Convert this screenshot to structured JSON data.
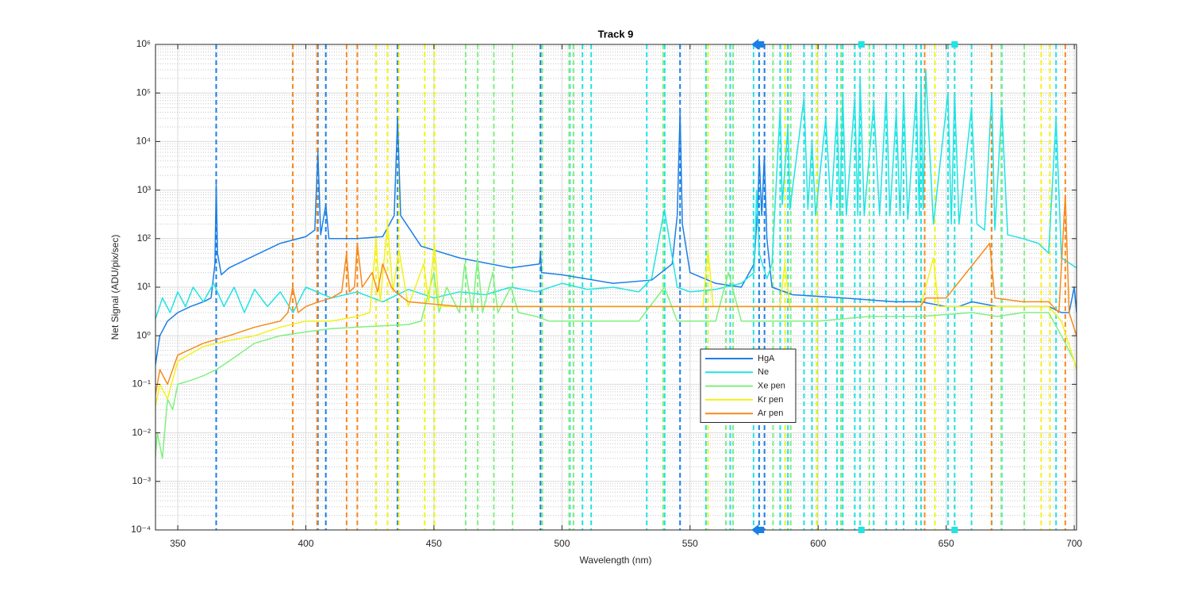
{
  "chart_data": {
    "type": "line",
    "title": "Track 9",
    "x_label": "Wavelength (nm)",
    "y_label": "Net Signal (ADU/pix/sec)",
    "yscale": "log",
    "grid": true,
    "minor_grid": true,
    "xlim": [
      341.3,
      700.9
    ],
    "xticks": [
      350,
      400,
      450,
      500,
      550,
      600,
      650,
      700
    ],
    "ylim": [
      0.0001,
      1000000
    ],
    "yticks": [
      {
        "value": 0.0001,
        "label": "10⁻⁴"
      },
      {
        "value": 0.001,
        "label": "10⁻³"
      },
      {
        "value": 0.01,
        "label": "10⁻²"
      },
      {
        "value": 0.1,
        "label": "10⁻¹"
      },
      {
        "value": 1,
        "label": "10⁰"
      },
      {
        "value": 10,
        "label": "10¹"
      },
      {
        "value": 100,
        "label": "10²"
      },
      {
        "value": 1000,
        "label": "10³"
      },
      {
        "value": 10000,
        "label": "10⁴"
      },
      {
        "value": 100000,
        "label": "10⁵"
      },
      {
        "value": 1000000,
        "label": "10⁶"
      }
    ],
    "series": [
      {
        "name": "HgA",
        "color": "#1b7fe6",
        "x": [
          341,
          343,
          346,
          350,
          355,
          360,
          363,
          364.5,
          365,
          365.5,
          367,
          370,
          380,
          390,
          400,
          403.5,
          404.7,
          405.8,
          407.8,
          409,
          420,
          430,
          434.5,
          435.8,
          437,
          445,
          460,
          480,
          491.2,
          491.6,
          492,
          500,
          520,
          535,
          543,
          545,
          546.1,
          547,
          550,
          560,
          570,
          575,
          576.5,
          577,
          578,
          579,
          580,
          582,
          590,
          610,
          630,
          640,
          650,
          655,
          660,
          670,
          680,
          690,
          695,
          698,
          700,
          700.9
        ],
        "values": [
          0.2,
          1,
          2,
          3,
          4,
          5,
          6,
          30,
          1300,
          50,
          18,
          25,
          45,
          80,
          110,
          150,
          6000,
          120,
          500,
          100,
          100,
          110,
          300,
          30000,
          300,
          70,
          40,
          25,
          30,
          50,
          20,
          18,
          12,
          14,
          30,
          300,
          40000,
          200,
          20,
          12,
          10,
          30,
          500,
          5000,
          300,
          5000,
          100,
          10,
          7,
          6,
          5,
          5,
          4,
          4,
          5,
          4,
          4,
          4,
          3,
          3,
          10,
          3
        ],
        "ref_lines": [
          365,
          404.7,
          407.8,
          435.8,
          491.6,
          546.1,
          576.96,
          579.07
        ]
      },
      {
        "name": "Ne",
        "color": "#20e3e3",
        "x": [
          341,
          344,
          347,
          350,
          353,
          356,
          360,
          364,
          368,
          372,
          376,
          380,
          385,
          390,
          395,
          400,
          410,
          420,
          430,
          440,
          450,
          460,
          470,
          480,
          490,
          500,
          510,
          520,
          530,
          535,
          540,
          545,
          550,
          560,
          570,
          575,
          576,
          577,
          580,
          582,
          585.2,
          586,
          588.2,
          589,
          594.5,
          596,
          597.6,
          599,
          603,
          605,
          607.4,
          608.5,
          609.6,
          611,
          614.3,
          615.5,
          616.4,
          618,
          621.7,
          624,
          626.6,
          628,
          630.5,
          632,
          633.4,
          635,
          638.3,
          639.5,
          640.2,
          641,
          642,
          645,
          650.7,
          652,
          653.3,
          655,
          659.9,
          662,
          665,
          667.8,
          669,
          671.7,
          674,
          680,
          686,
          690,
          692.9,
          695,
          700.9
        ],
        "values": [
          2,
          6,
          3,
          8,
          4,
          10,
          5,
          12,
          4,
          10,
          3,
          9,
          4,
          8,
          3,
          10,
          6,
          8,
          5,
          9,
          6,
          8,
          7,
          10,
          8,
          12,
          9,
          10,
          8,
          15,
          400,
          10,
          8,
          9,
          12,
          20,
          1000,
          50,
          15,
          30,
          50000,
          500,
          20000,
          400,
          80000,
          400,
          10000,
          300,
          30000,
          400,
          40000,
          300,
          100000,
          300,
          80000,
          300,
          200000,
          300,
          60000,
          300,
          100000,
          300,
          40000,
          300,
          100000,
          250,
          100000,
          300,
          200000,
          400,
          300000,
          200,
          100000,
          200,
          100000,
          200,
          50000,
          200,
          150,
          100000,
          150,
          50000,
          120,
          100,
          80,
          50,
          30000,
          40,
          25
        ],
        "ref_lines": [
          503.1,
          508,
          511.4,
          533.1,
          540.1,
          556.2,
          565.7,
          574.8,
          585.2,
          588.2,
          594.5,
          597.6,
          603,
          607.4,
          609.6,
          614.3,
          616.4,
          621.7,
          626.6,
          630.5,
          633.4,
          638.3,
          640.2,
          650.7,
          653.3,
          659.9,
          667.8,
          671.7,
          692.9
        ]
      },
      {
        "name": "Xe pen",
        "color": "#7ff07f",
        "x": [
          341,
          342,
          344,
          346,
          348,
          350,
          355,
          360,
          365,
          370,
          380,
          390,
          400,
          410,
          420,
          430,
          440,
          445,
          450,
          452,
          455,
          460,
          462,
          465,
          467,
          469,
          473,
          475,
          480,
          483,
          490,
          495,
          500,
          505,
          520,
          530,
          540,
          545,
          560,
          565,
          570,
          580,
          590,
          600,
          620,
          640,
          660,
          670,
          680,
          690,
          695,
          700,
          700.9
        ],
        "values": [
          0.002,
          0.01,
          0.003,
          0.05,
          0.03,
          0.1,
          0.12,
          0.15,
          0.2,
          0.3,
          0.7,
          1,
          1.2,
          1.4,
          1.5,
          1.6,
          1.7,
          2,
          20,
          3,
          10,
          3,
          30,
          3,
          40,
          3,
          20,
          3,
          10,
          3,
          2.5,
          2,
          2,
          2,
          2,
          2,
          10,
          2,
          2,
          20,
          2,
          2,
          2,
          2,
          2.5,
          2.5,
          3,
          2.5,
          3,
          3,
          1,
          0.3,
          0.2
        ],
        "ref_lines": [
          450.1,
          462.4,
          467.1,
          473.4,
          480.7,
          492.3,
          502.8,
          504.5,
          539.5,
          564,
          566.8,
          582.4,
          589.3,
          599.6,
          608.9,
          620,
          671.5,
          680.5
        ]
      },
      {
        "name": "Kr pen",
        "color": "#f2f21a",
        "x": [
          341,
          343,
          346,
          350,
          360,
          370,
          380,
          390,
          400,
          410,
          420,
          425,
          427.4,
          429,
          431.9,
          434,
          436.3,
          440,
          446,
          448,
          450.2,
          452,
          460,
          480,
          500,
          520,
          540,
          555,
          557,
          559,
          570,
          585,
          587,
          589,
          600,
          620,
          640,
          645,
          647,
          660,
          680,
          690,
          695,
          700,
          700.9
        ],
        "values": [
          0.03,
          0.1,
          0.05,
          0.3,
          0.6,
          0.8,
          1,
          1.5,
          2,
          2,
          2.5,
          3,
          100,
          5,
          200,
          8,
          60,
          4,
          30,
          5,
          80,
          4,
          4,
          4,
          4,
          4,
          4,
          4,
          60,
          4,
          4,
          4,
          30,
          4,
          4,
          4,
          4,
          40,
          4,
          4,
          4,
          4,
          2,
          0.3,
          0.2
        ],
        "ref_lines": [
          427.4,
          431.9,
          436.3,
          446.4,
          450.2,
          557,
          587.1,
          599.4,
          645.6,
          687.1,
          690.5
        ]
      },
      {
        "name": "Ar pen",
        "color": "#f78a1c",
        "x": [
          341,
          343,
          346,
          350,
          360,
          370,
          380,
          390,
          393,
          394.9,
          397,
          400,
          405,
          410,
          414,
          415.9,
          417,
          419,
          420.1,
          422,
          425.9,
          428,
          430,
          433.4,
          435,
          440,
          460,
          480,
          500,
          540,
          580,
          600,
          620,
          640,
          642,
          650,
          667,
          669,
          680,
          690,
          694,
          696.5,
          698,
          700.9
        ],
        "values": [
          0.05,
          0.2,
          0.1,
          0.4,
          0.7,
          1,
          1.5,
          2,
          3,
          10,
          3,
          4,
          5,
          6,
          8,
          50,
          8,
          10,
          80,
          10,
          20,
          8,
          30,
          10,
          8,
          5,
          4,
          4,
          4,
          4,
          4,
          4,
          4,
          4,
          6,
          6,
          80,
          6,
          5,
          5,
          3,
          800,
          3,
          1
        ],
        "ref_lines": [
          394.9,
          404.4,
          415.9,
          420.1,
          641.6,
          667.7,
          696.5
        ]
      }
    ],
    "markers": {
      "x": [
        577.7,
        616.9,
        653.3
      ],
      "colors": [
        "#1b7fe6",
        "#20e3e3",
        "#20e3e3"
      ],
      "shapes": [
        "arrow",
        "square",
        "square"
      ]
    }
  }
}
